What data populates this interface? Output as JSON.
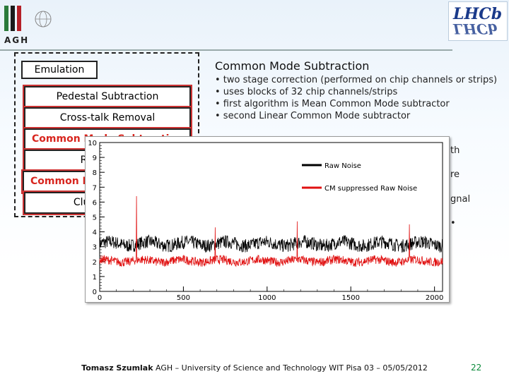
{
  "logos": {
    "left": {
      "text": "AGH"
    },
    "right": {
      "text": "LHCb"
    }
  },
  "emulation": {
    "label": "Emulation",
    "stages": [
      {
        "label": "Pedestal Subtraction",
        "highlight": false
      },
      {
        "label": "Cross-talk Removal",
        "highlight": false
      },
      {
        "label": "Common Mode Subtraction",
        "highlight": true
      },
      {
        "label": "Reordering",
        "highlight": false
      },
      {
        "label": "Common Mode Subtraction",
        "highlight": true
      },
      {
        "label": "Clusterization",
        "highlight": false
      }
    ]
  },
  "slide": {
    "title": "Common Mode Subtraction",
    "bullets": [
      "• two stage correction (performed on chip channels or strips)",
      "• uses blocks of 32 chip channels/strips",
      "• first algorithm is Mean Common Mode subtractor",
      "• second Linear Common Mode subtractor"
    ],
    "partial_lines": [
      "th",
      "re",
      "gnal",
      "•"
    ]
  },
  "chart_data": {
    "type": "line",
    "xlim": [
      0,
      2048
    ],
    "ylim": [
      0,
      10
    ],
    "xticks": [
      "0",
      "500",
      "1000",
      "1500",
      "2000"
    ],
    "yticks": [
      "0",
      "1",
      "2",
      "3",
      "4",
      "5",
      "6",
      "7",
      "8",
      "9",
      "10"
    ],
    "grid": false,
    "legend_position": "top-right",
    "series": [
      {
        "name": "Raw Noise",
        "color": "#000000",
        "level": 3.2,
        "spread": 0.45
      },
      {
        "name": "CM suppressed Raw Noise",
        "color": "#e01010",
        "level": 2.05,
        "spread": 0.3
      }
    ],
    "spikes": [
      {
        "x": 220,
        "y": 6.4
      },
      {
        "x": 690,
        "y": 4.3
      },
      {
        "x": 1180,
        "y": 4.7
      },
      {
        "x": 1850,
        "y": 4.5
      }
    ]
  },
  "footer": {
    "author": "Tomasz Szumlak",
    "rest": " AGH – University of Science and Technology WIT Pisa 03 – 05/05/2012",
    "page": "22"
  }
}
